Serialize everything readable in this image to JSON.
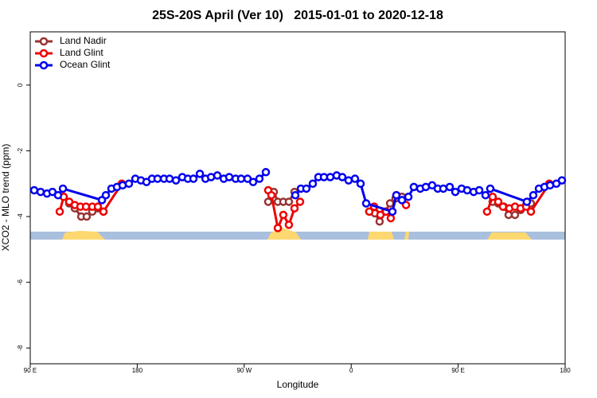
{
  "chart_data": {
    "type": "line",
    "title": "25S-20S April (Ver 10)   2015-01-01 to 2020-12-18",
    "xlabel": "Longitude",
    "ylabel": "XCO2 - MLO trend (ppm)",
    "xlim": [
      90,
      540
    ],
    "ylim": [
      -8.48,
      1.62
    ],
    "xticks": [
      {
        "value": 90,
        "label": "90 E"
      },
      {
        "value": 180,
        "label": "180"
      },
      {
        "value": 270,
        "label": "90 W"
      },
      {
        "value": 360,
        "label": "0"
      },
      {
        "value": 450,
        "label": "90 E"
      },
      {
        "value": 540,
        "label": "180"
      }
    ],
    "yticks": [
      0,
      -2,
      -4,
      -6,
      -8
    ],
    "legend": "upper left",
    "series": [
      {
        "name": "Land Nadir",
        "color": "#993333",
        "x": [
          118.1,
          122.8,
          127.5,
          132.9,
          137.5,
          142.2,
          146.9,
          151.6,
          null,
          290.2,
          294.9,
          298.3,
          302.9,
          307.6,
          312.3,
          null,
          375.2,
          379.9,
          383.9,
          388.6,
          392.7,
          397.3,
          402.7,
          null,
          479.0,
          483.7,
          488.4,
          492.4,
          497.8,
          502.5,
          507.2,
          511.2
        ],
        "values": [
          -3.4,
          -3.6,
          -3.75,
          -4.0,
          -4.0,
          -3.85,
          -3.75,
          -3.85,
          null,
          -3.55,
          -3.25,
          -3.55,
          -3.55,
          -3.55,
          -3.25,
          null,
          -3.85,
          -3.9,
          -4.15,
          -3.85,
          -3.6,
          -3.45,
          -3.4,
          null,
          -3.55,
          -3.6,
          -3.7,
          -3.95,
          -3.95,
          -3.8,
          -3.65,
          -3.6
        ]
      },
      {
        "name": "Land Glint",
        "color": "#ee0000",
        "x": [
          114.8,
          118.1,
          122.8,
          127.5,
          132.2,
          136.9,
          142.2,
          146.9,
          151.6,
          167.0,
          null,
          290.2,
          292.9,
          298.3,
          302.9,
          307.6,
          312.3,
          317.0,
          null,
          375.2,
          379.3,
          384.6,
          389.3,
          393.3,
          398.0,
          406.1,
          null,
          474.3,
          479.0,
          483.7,
          487.7,
          493.1,
          497.8,
          502.5,
          507.2,
          511.2,
          526.6
        ],
        "values": [
          -3.85,
          -3.4,
          -3.55,
          -3.65,
          -3.7,
          -3.7,
          -3.7,
          -3.7,
          -3.85,
          -3.0,
          null,
          -3.2,
          -3.35,
          -4.35,
          -3.95,
          -4.25,
          -3.75,
          -3.55,
          null,
          -3.85,
          -3.7,
          -3.95,
          -3.85,
          -4.05,
          -3.35,
          -3.65,
          null,
          -3.85,
          -3.4,
          -3.55,
          -3.7,
          -3.75,
          -3.7,
          -3.75,
          -3.7,
          -3.85,
          -3.0
        ]
      },
      {
        "name": "Ocean Glint",
        "color": "#0000ee",
        "x": [
          93.3,
          98.7,
          104.1,
          108.7,
          113.4,
          117.5,
          150.3,
          153.6,
          158.3,
          163.0,
          167.7,
          173.0,
          178.4,
          183.1,
          187.8,
          192.4,
          197.1,
          202.5,
          207.2,
          212.6,
          217.9,
          222.6,
          227.3,
          232.7,
          237.4,
          242.1,
          247.4,
          252.8,
          257.4,
          262.8,
          267.4,
          272.8,
          277.5,
          282.8,
          288.2,
          null,
          313.0,
          317.7,
          322.3,
          327.7,
          332.4,
          337.1,
          342.4,
          347.8,
          352.5,
          357.8,
          363.2,
          367.9,
          372.6,
          394.7,
          398.0,
          402.7,
          408.1,
          412.7,
          418.1,
          422.8,
          428.1,
          432.8,
          437.5,
          442.9,
          447.6,
          452.9,
          457.6,
          463.0,
          467.7,
          473.0,
          477.0,
          507.8,
          513.2,
          517.9,
          522.6,
          527.3,
          532.6,
          537.3
        ],
        "values": [
          -3.2,
          -3.25,
          -3.3,
          -3.25,
          -3.35,
          -3.15,
          -3.5,
          -3.35,
          -3.15,
          -3.1,
          -3.05,
          -3.0,
          -2.85,
          -2.9,
          -2.95,
          -2.85,
          -2.85,
          -2.85,
          -2.85,
          -2.9,
          -2.8,
          -2.85,
          -2.85,
          -2.7,
          -2.85,
          -2.8,
          -2.75,
          -2.85,
          -2.8,
          -2.85,
          -2.85,
          -2.85,
          -2.95,
          -2.85,
          -2.65,
          null,
          -3.35,
          -3.15,
          -3.15,
          -3.0,
          -2.8,
          -2.8,
          -2.8,
          -2.75,
          -2.8,
          -2.9,
          -2.85,
          -3.0,
          -3.6,
          -3.85,
          -3.35,
          -3.5,
          -3.4,
          -3.1,
          -3.15,
          -3.1,
          -3.05,
          -3.15,
          -3.15,
          -3.1,
          -3.25,
          -3.15,
          -3.2,
          -3.25,
          -3.2,
          -3.35,
          -3.15,
          -3.55,
          -3.35,
          -3.15,
          -3.1,
          -3.05,
          -3.0,
          -2.9
        ]
      }
    ]
  }
}
